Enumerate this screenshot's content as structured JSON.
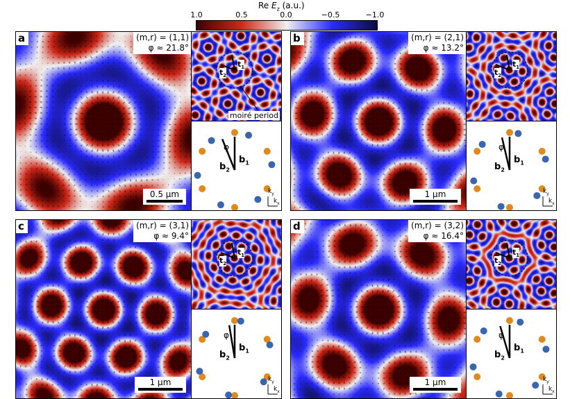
{
  "colorbar": {
    "title_prefix": "Re ",
    "title_var": "E",
    "title_sub": "z",
    "title_suffix": " (a.u.)",
    "ticks": [
      "1.0",
      "0.5",
      "0.0",
      "−0.5",
      "−1.0"
    ],
    "colors": [
      "#3d0000",
      "#d02818",
      "#f0f0f0",
      "#2a2aff",
      "#0c0c40"
    ]
  },
  "panels": [
    {
      "letter": "a",
      "mr": "(m,r) = (1,1)",
      "phi": "φ ≈ 21.8°",
      "phi_deg": 21.8,
      "scale": "0.5 µm",
      "moire_label": "moiré period"
    },
    {
      "letter": "b",
      "mr": "(m,r) = (2,1)",
      "phi": "φ ≈ 13.2°",
      "phi_deg": 13.2,
      "scale": "1 µm"
    },
    {
      "letter": "c",
      "mr": "(m,r) = (3,1)",
      "phi": "φ ≈ 9.4°",
      "phi_deg": 9.4,
      "scale": "1 µm"
    },
    {
      "letter": "d",
      "mr": "(m,r) = (3,2)",
      "phi": "φ ≈ 16.4°",
      "phi_deg": 16.4,
      "scale": "1 µm"
    }
  ],
  "labels": {
    "t1": "t",
    "t2": "t",
    "b1": "b",
    "b2": "b",
    "phi_symbol": "φ",
    "kx": "k",
    "ky": "k"
  },
  "dot_colors": {
    "set1": "#e08a1e",
    "set2": "#3a66b0"
  }
}
